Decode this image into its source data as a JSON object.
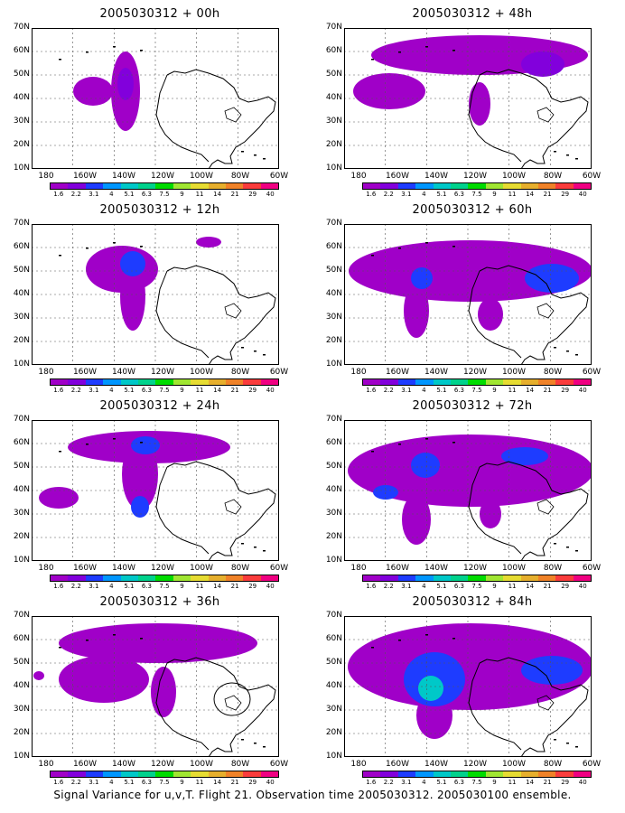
{
  "panels": [
    {
      "title": "2005030312 + 00h"
    },
    {
      "title": "2005030312 + 12h"
    },
    {
      "title": "2005030312 + 24h"
    },
    {
      "title": "2005030312 + 36h"
    },
    {
      "title": "2005030312 + 48h"
    },
    {
      "title": "2005030312 + 60h"
    },
    {
      "title": "2005030312 + 72h"
    },
    {
      "title": "2005030312 + 84h"
    }
  ],
  "axes": {
    "lat_labels": [
      "70N",
      "60N",
      "50N",
      "40N",
      "30N",
      "20N",
      "10N"
    ],
    "lon_labels": [
      "180",
      "160W",
      "140W",
      "120W",
      "100W",
      "80W",
      "60W"
    ]
  },
  "colorbar": {
    "labels": [
      "1.6",
      "2.2",
      "3.1",
      "4",
      "5.1",
      "6.3",
      "7.5",
      "9",
      "11",
      "14",
      "21",
      "29",
      "40"
    ],
    "colors": [
      "#a000c8",
      "#8200dc",
      "#1e3cff",
      "#0096ff",
      "#00c8c8",
      "#00d28c",
      "#00dc00",
      "#a0e632",
      "#e6dc32",
      "#e6af2d",
      "#f08228",
      "#fa3c3c",
      "#f00082"
    ]
  },
  "caption": "Signal Variance for u,v,T. Flight 21. Observation time 2005030312. 2005030100 ensemble."
}
